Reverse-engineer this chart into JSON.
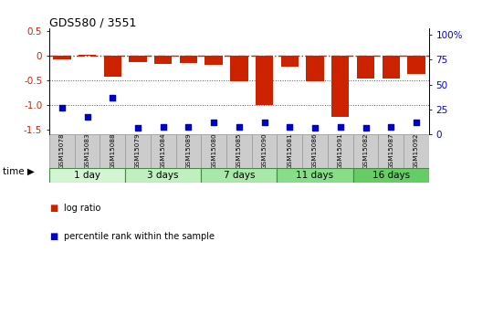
{
  "title": "GDS580 / 3551",
  "samples": [
    "GSM15078",
    "GSM15083",
    "GSM15088",
    "GSM15079",
    "GSM15084",
    "GSM15089",
    "GSM15080",
    "GSM15085",
    "GSM15090",
    "GSM15081",
    "GSM15086",
    "GSM15091",
    "GSM15082",
    "GSM15087",
    "GSM15092"
  ],
  "log_ratio": [
    -0.08,
    0.02,
    -0.42,
    -0.14,
    -0.17,
    -0.15,
    -0.18,
    -0.52,
    -1.0,
    -0.22,
    -0.52,
    -1.25,
    -0.46,
    -0.47,
    -0.38
  ],
  "percentile_rank": [
    27,
    18,
    37,
    7,
    8,
    8,
    12,
    8,
    12,
    8,
    7,
    8,
    7,
    8,
    12
  ],
  "groups": [
    {
      "label": "1 day",
      "indices": [
        0,
        1,
        2
      ],
      "color": "#d4f5d4"
    },
    {
      "label": "3 days",
      "indices": [
        3,
        4,
        5
      ],
      "color": "#c0f0c0"
    },
    {
      "label": "7 days",
      "indices": [
        6,
        7,
        8
      ],
      "color": "#a8e8a8"
    },
    {
      "label": "11 days",
      "indices": [
        9,
        10,
        11
      ],
      "color": "#88dd88"
    },
    {
      "label": "16 days",
      "indices": [
        12,
        13,
        14
      ],
      "color": "#66cc66"
    }
  ],
  "bar_color": "#cc2200",
  "dot_color": "#0000cc",
  "ref_line_color": "#cc2200",
  "dotted_line_color": "#555555",
  "ylim_left": [
    -1.6,
    0.55
  ],
  "ylim_right": [
    0,
    106
  ],
  "yticks_left": [
    0.5,
    0,
    -0.5,
    -1.0,
    -1.5
  ],
  "yticks_right": [
    0,
    25,
    50,
    75,
    100
  ],
  "legend_items": [
    {
      "label": "log ratio",
      "color": "#cc2200"
    },
    {
      "label": "percentile rank within the sample",
      "color": "#0000cc"
    }
  ]
}
